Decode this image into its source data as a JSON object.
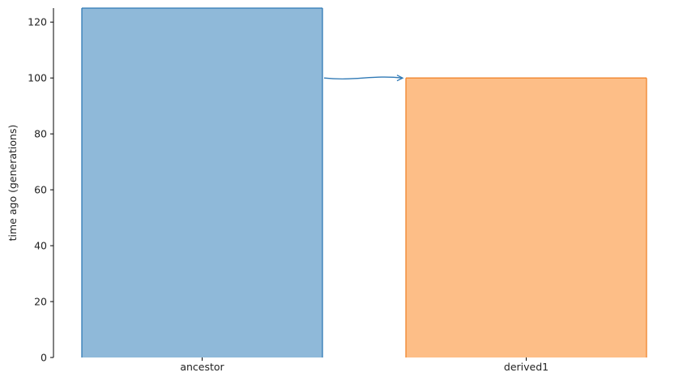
{
  "chart_data": {
    "type": "bar",
    "categories": [
      "ancestor",
      "derived1"
    ],
    "series": [
      {
        "values": [
          125,
          100
        ],
        "fills": [
          "#8fb9d9",
          "#fdbe87"
        ],
        "strokes": [
          "#2f79b5",
          "#f0852d"
        ]
      }
    ],
    "note": "ancestor bar extends beyond the top of the visible axis range",
    "migration_arrow": {
      "from": "ancestor",
      "to": "derived1",
      "at_time": 100,
      "color": "#2f79b5"
    },
    "xlabel": "",
    "ylabel": "time ago (generations)",
    "ylim": [
      0,
      125
    ],
    "yticks": [
      0,
      20,
      40,
      60,
      80,
      100,
      120
    ],
    "grid": false,
    "legend": "none"
  }
}
